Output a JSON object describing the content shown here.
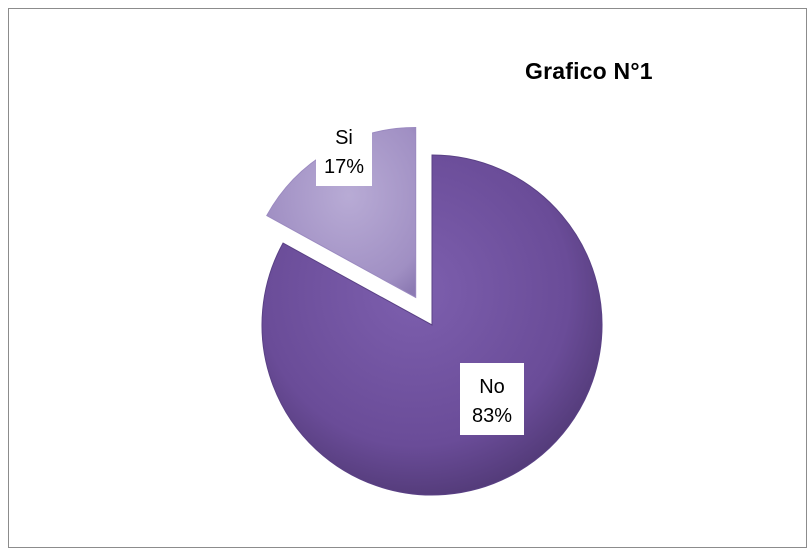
{
  "chart_data": {
    "type": "pie",
    "title": "Grafico N°1",
    "slices": [
      {
        "label": "Si",
        "value": 17,
        "percent_label": "17%",
        "color": "#a595c6"
      },
      {
        "label": "No",
        "value": 83,
        "percent_label": "83%",
        "color": "#6a4c98"
      }
    ],
    "exploded": true
  }
}
